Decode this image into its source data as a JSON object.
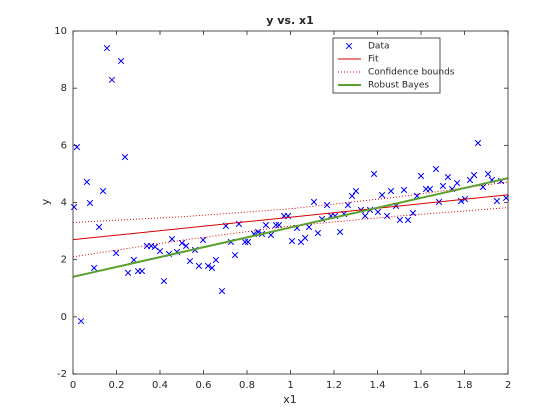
{
  "chart_data": {
    "type": "scatter",
    "title": "y vs. x1",
    "x_label": "x1",
    "y_label": "y",
    "xlim": [
      0,
      2
    ],
    "ylim": [
      -2,
      10
    ],
    "xticks": [
      0,
      0.2,
      0.4,
      0.6,
      0.8,
      1,
      1.2,
      1.4,
      1.6,
      1.8,
      2
    ],
    "yticks": [
      -2,
      0,
      2,
      4,
      6,
      8,
      10
    ],
    "grid": false,
    "legend": "top-right",
    "series": [
      {
        "name": "Data",
        "color": "#0000ff",
        "style": "marker",
        "x": [
          0.005,
          0.018,
          0.037,
          0.064,
          0.078,
          0.097,
          0.12,
          0.138,
          0.156,
          0.179,
          0.198,
          0.221,
          0.239,
          0.253,
          0.28,
          0.299,
          0.317,
          0.34,
          0.359,
          0.377,
          0.4,
          0.418,
          0.441,
          0.455,
          0.478,
          0.501,
          0.52,
          0.538,
          0.561,
          0.579,
          0.598,
          0.621,
          0.639,
          0.657,
          0.685,
          0.703,
          0.726,
          0.745,
          0.763,
          0.791,
          0.805,
          0.832,
          0.851,
          0.869,
          0.887,
          0.91,
          0.933,
          0.947,
          0.97,
          0.989,
          1.007,
          1.03,
          1.048,
          1.067,
          1.085,
          1.108,
          1.126,
          1.145,
          1.168,
          1.186,
          1.205,
          1.228,
          1.246,
          1.264,
          1.283,
          1.301,
          1.324,
          1.343,
          1.366,
          1.384,
          1.402,
          1.421,
          1.444,
          1.462,
          1.485,
          1.503,
          1.522,
          1.54,
          1.563,
          1.582,
          1.6,
          1.623,
          1.641,
          1.669,
          1.683,
          1.701,
          1.724,
          1.743,
          1.766,
          1.784,
          1.802,
          1.825,
          1.844,
          1.862,
          1.885,
          1.908,
          1.926,
          1.949,
          1.968,
          1.991
        ],
        "values": [
          3.84,
          5.94,
          -0.15,
          4.72,
          3.98,
          1.71,
          3.14,
          4.4,
          9.4,
          8.29,
          2.23,
          8.95,
          5.59,
          1.54,
          1.99,
          1.6,
          1.6,
          2.48,
          2.48,
          2.45,
          2.3,
          1.25,
          2.2,
          2.72,
          2.27,
          2.58,
          2.48,
          1.95,
          2.34,
          1.78,
          2.69,
          1.78,
          1.71,
          1.99,
          0.9,
          3.18,
          2.62,
          2.16,
          3.25,
          2.62,
          2.62,
          2.9,
          2.97,
          2.9,
          3.21,
          2.86,
          3.21,
          3.21,
          3.53,
          3.53,
          2.65,
          3.11,
          2.62,
          2.76,
          3.14,
          4.02,
          2.93,
          3.42,
          3.91,
          3.53,
          3.53,
          2.97,
          3.6,
          3.91,
          4.23,
          4.4,
          3.74,
          3.53,
          3.74,
          5.0,
          3.67,
          4.26,
          3.53,
          4.4,
          3.88,
          3.39,
          4.44,
          3.39,
          3.63,
          4.23,
          4.93,
          4.47,
          4.47,
          5.17,
          4.02,
          4.58,
          4.89,
          4.47,
          4.68,
          4.05,
          4.12,
          4.79,
          4.96,
          6.08,
          4.54,
          5.0,
          4.79,
          4.05,
          4.75,
          4.16
        ]
      },
      {
        "name": "Fit",
        "color": "#d40000",
        "style": "solid",
        "x": [
          0,
          2
        ],
        "values": [
          2.7,
          4.27
        ]
      },
      {
        "name": "Confidence bounds",
        "color": "#d40000",
        "style": "dotted",
        "x": [
          0,
          0.5,
          1,
          1.5,
          2
        ],
        "values": [
          3.3,
          3.5,
          3.78,
          4.2,
          4.72
        ]
      },
      {
        "name": null,
        "color": "#d40000",
        "style": "dotted",
        "x": [
          0,
          0.5,
          1,
          1.5,
          2
        ],
        "values": [
          2.1,
          2.68,
          3.18,
          3.53,
          3.82
        ]
      },
      {
        "name": "Robust Bayes",
        "color": "#5aa02c",
        "style": "thick",
        "x": [
          0,
          2
        ],
        "values": [
          1.4,
          4.85
        ]
      }
    ]
  }
}
